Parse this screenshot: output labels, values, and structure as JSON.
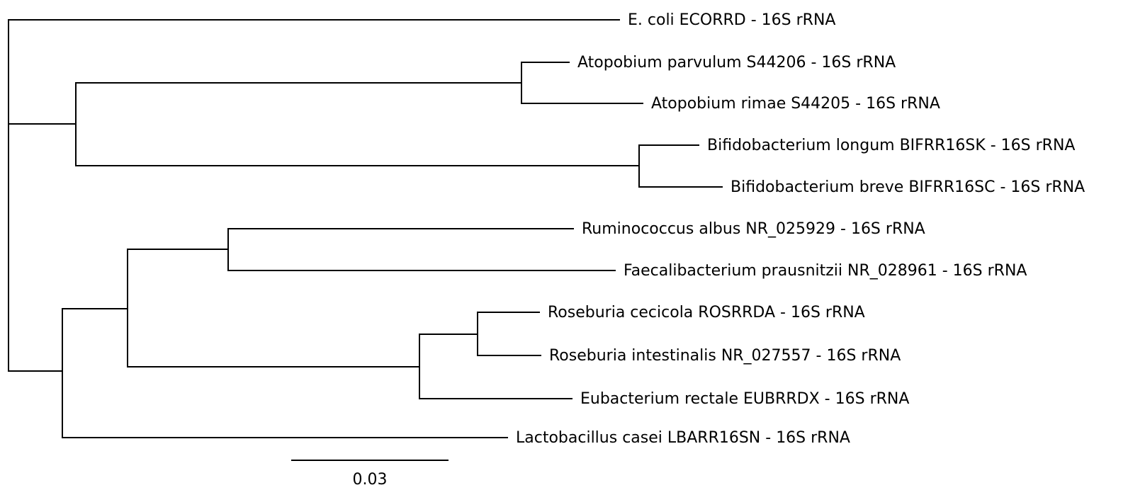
{
  "tree": {
    "leaves": [
      "E. coli ECORRD - 16S rRNA",
      "Atopobium parvulum S44206 - 16S rRNA",
      "Atopobium rimae S44205 - 16S rRNA",
      "Bifidobacterium longum BIFRR16SK - 16S rRNA",
      "Bifidobacterium breve BIFRR16SC - 16S rRNA",
      "Ruminococcus albus NR_025929 - 16S rRNA",
      "Faecalibacterium prausnitzii NR_028961 - 16S rRNA",
      "Roseburia cecicola ROSRRDA - 16S rRNA",
      "Roseburia intestinalis NR_027557 - 16S rRNA",
      "Eubacterium rectale EUBRRDX - 16S rRNA",
      "Lactobacillus casei LBARR16SN - 16S rRNA"
    ],
    "scale_bar": {
      "label": "0.03",
      "length": 0.03
    }
  }
}
